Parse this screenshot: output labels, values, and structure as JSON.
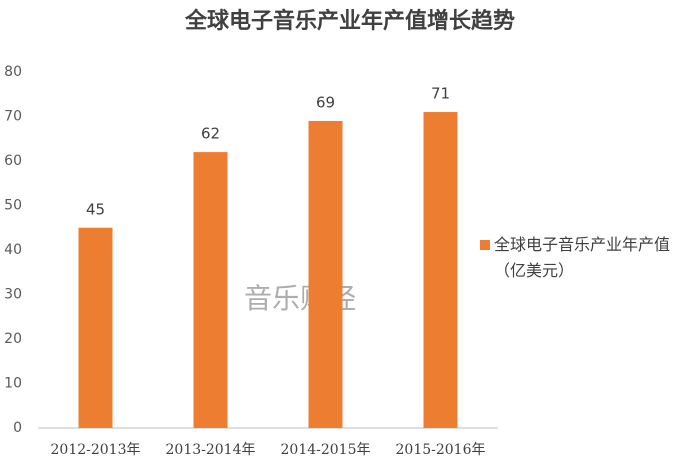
{
  "chart_data": {
    "type": "bar",
    "title": "全球电子音乐产业年产值增长趋势",
    "categories": [
      "2012-2013年",
      "2013-2014年",
      "2014-2015年",
      "2015-2016年"
    ],
    "series": [
      {
        "name": "全球电子音乐产业年产值（亿美元）",
        "color": "#ed7d31",
        "values": [
          45,
          62,
          69,
          71
        ]
      }
    ],
    "ylim": [
      0,
      80
    ],
    "yticks": [
      0,
      10,
      20,
      30,
      40,
      50,
      60,
      70,
      80
    ],
    "grid": false,
    "legend": "right",
    "watermark": "音乐财经"
  }
}
